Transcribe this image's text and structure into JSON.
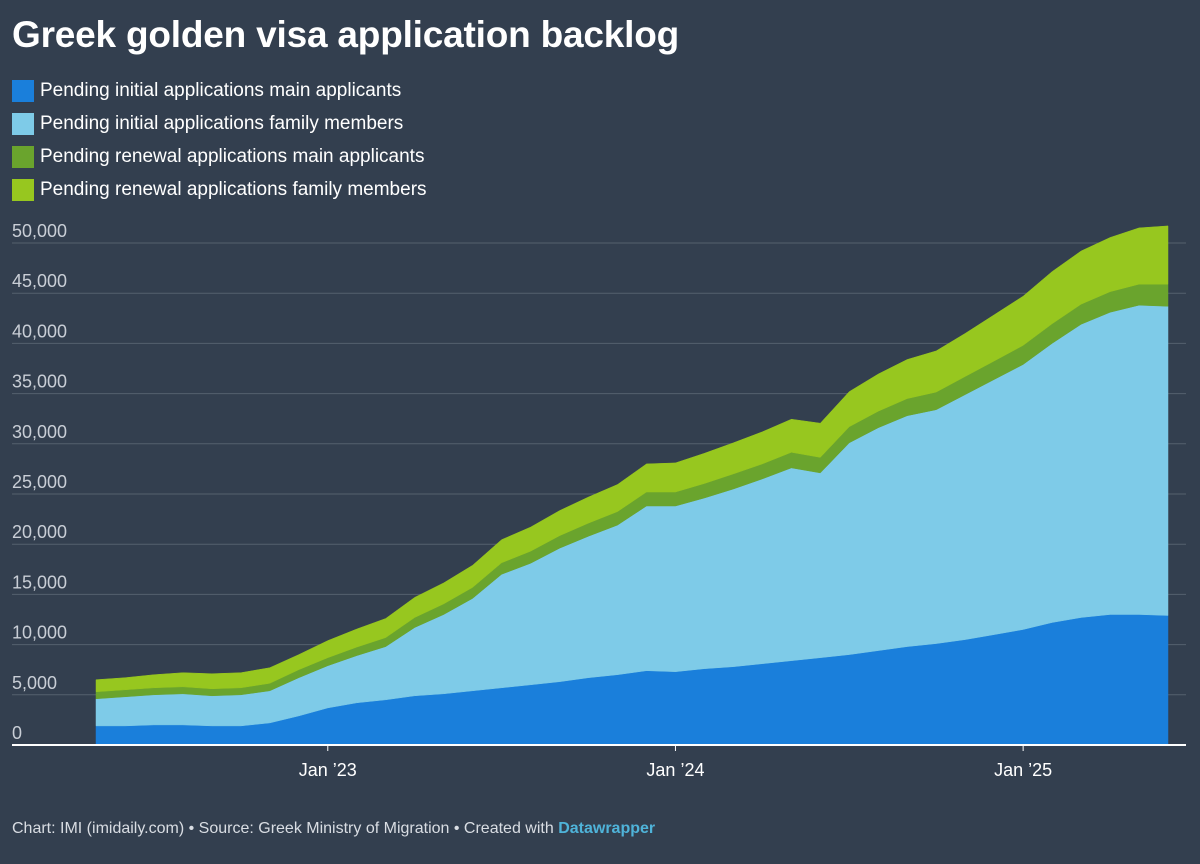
{
  "chart_data": {
    "type": "area",
    "stacked": true,
    "title": "Greek golden visa application backlog",
    "x": [
      "2022-05",
      "2022-06",
      "2022-07",
      "2022-08",
      "2022-09",
      "2022-10",
      "2022-11",
      "2022-12",
      "2023-01",
      "2023-02",
      "2023-03",
      "2023-04",
      "2023-05",
      "2023-06",
      "2023-07",
      "2023-08",
      "2023-09",
      "2023-10",
      "2023-11",
      "2023-12",
      "2024-01",
      "2024-02",
      "2024-03",
      "2024-04",
      "2024-05",
      "2024-06",
      "2024-07",
      "2024-08",
      "2024-09",
      "2024-10",
      "2024-11",
      "2024-12",
      "2025-01",
      "2025-02",
      "2025-03",
      "2025-04",
      "2025-05",
      "2025-06"
    ],
    "x_ticks": [
      {
        "value": "2023-01",
        "label": "Jan ’23"
      },
      {
        "value": "2024-01",
        "label": "Jan ’24"
      },
      {
        "value": "2025-01",
        "label": "Jan ’25"
      }
    ],
    "ylim": [
      0,
      50000
    ],
    "y_ticks": [
      0,
      5000,
      10000,
      15000,
      20000,
      25000,
      30000,
      35000,
      40000,
      45000,
      50000
    ],
    "y_tick_labels": [
      "0",
      "5,000",
      "10,000",
      "15,000",
      "20,000",
      "25,000",
      "30,000",
      "35,000",
      "40,000",
      "45,000",
      "50,000"
    ],
    "grid": true,
    "legend_position": "top-left",
    "series": [
      {
        "name": "Pending initial applications main applicants",
        "color": "#1a7fdb",
        "values": [
          1900,
          1900,
          2000,
          2000,
          1900,
          1900,
          2200,
          2900,
          3700,
          4200,
          4500,
          4900,
          5100,
          5400,
          5700,
          6000,
          6300,
          6700,
          7000,
          7400,
          7300,
          7600,
          7800,
          8100,
          8400,
          8700,
          9000,
          9400,
          9800,
          10100,
          10500,
          11000,
          11500,
          12200,
          12700,
          13000,
          13000,
          12900
        ]
      },
      {
        "name": "Pending initial applications family members",
        "color": "#7ecbe8",
        "values": [
          2700,
          2900,
          3000,
          3100,
          3000,
          3100,
          3200,
          3800,
          4200,
          4700,
          5300,
          6800,
          7900,
          9200,
          11300,
          12100,
          13300,
          14100,
          14900,
          16400,
          16500,
          17000,
          17700,
          18400,
          19200,
          18400,
          21100,
          22200,
          23000,
          23300,
          24400,
          25400,
          26400,
          27800,
          29200,
          30100,
          30800,
          30800
        ]
      },
      {
        "name": "Pending renewal applications main applicants",
        "color": "#6aa42d",
        "values": [
          700,
          700,
          700,
          700,
          700,
          700,
          750,
          800,
          800,
          850,
          900,
          1000,
          1050,
          1100,
          1150,
          1200,
          1250,
          1300,
          1350,
          1400,
          1400,
          1450,
          1500,
          1500,
          1550,
          1550,
          1600,
          1650,
          1700,
          1750,
          1800,
          1850,
          1900,
          1950,
          2000,
          2050,
          2100,
          2200
        ]
      },
      {
        "name": "Pending renewal applications family members",
        "color": "#97c71f",
        "values": [
          1200,
          1200,
          1300,
          1400,
          1500,
          1500,
          1550,
          1500,
          1700,
          1800,
          1900,
          2000,
          2100,
          2200,
          2300,
          2400,
          2500,
          2600,
          2700,
          2800,
          2900,
          3000,
          3100,
          3200,
          3300,
          3400,
          3500,
          3700,
          3900,
          4100,
          4300,
          4600,
          4900,
          5200,
          5300,
          5400,
          5600,
          5800
        ]
      }
    ]
  },
  "footer": {
    "chart_credit": "Chart: IMI (imidaily.com)",
    "separator": " • ",
    "source": "Source: Greek Ministry of Migration",
    "created_with": "Created with ",
    "tool_name": "Datawrapper"
  }
}
